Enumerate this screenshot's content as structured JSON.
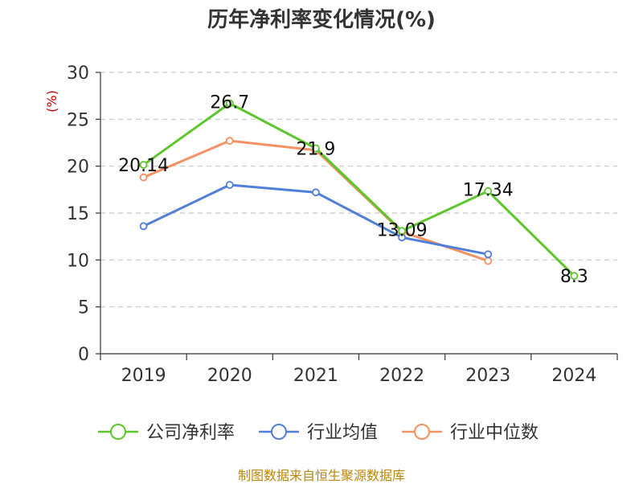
{
  "title": "历年净利率变化情况(%)",
  "source": "制图数据来自恒生聚源数据库",
  "chart_data": {
    "type": "line",
    "title": "历年净利率变化情况(%)",
    "ylabel": "(%)",
    "xlabel": "",
    "categories": [
      "2019",
      "2020",
      "2021",
      "2022",
      "2023",
      "2024"
    ],
    "ylim": [
      0,
      30
    ],
    "yticks": [
      0,
      5,
      10,
      15,
      20,
      25,
      30
    ],
    "grid": true,
    "legend_position": "bottom",
    "series": [
      {
        "name": "公司净利率",
        "color": "#5cc62b",
        "values": [
          20.14,
          26.7,
          21.9,
          13.09,
          17.34,
          8.3
        ],
        "labels": [
          "20.14",
          "26.7",
          "21.9",
          "13.09",
          "17.34",
          "8.3"
        ]
      },
      {
        "name": "行业均值",
        "color": "#4f7fd8",
        "values": [
          13.6,
          18.0,
          17.2,
          12.4,
          10.6,
          null
        ]
      },
      {
        "name": "行业中位数",
        "color": "#f59162",
        "values": [
          18.8,
          22.7,
          21.7,
          13.0,
          9.9,
          null
        ]
      }
    ]
  }
}
